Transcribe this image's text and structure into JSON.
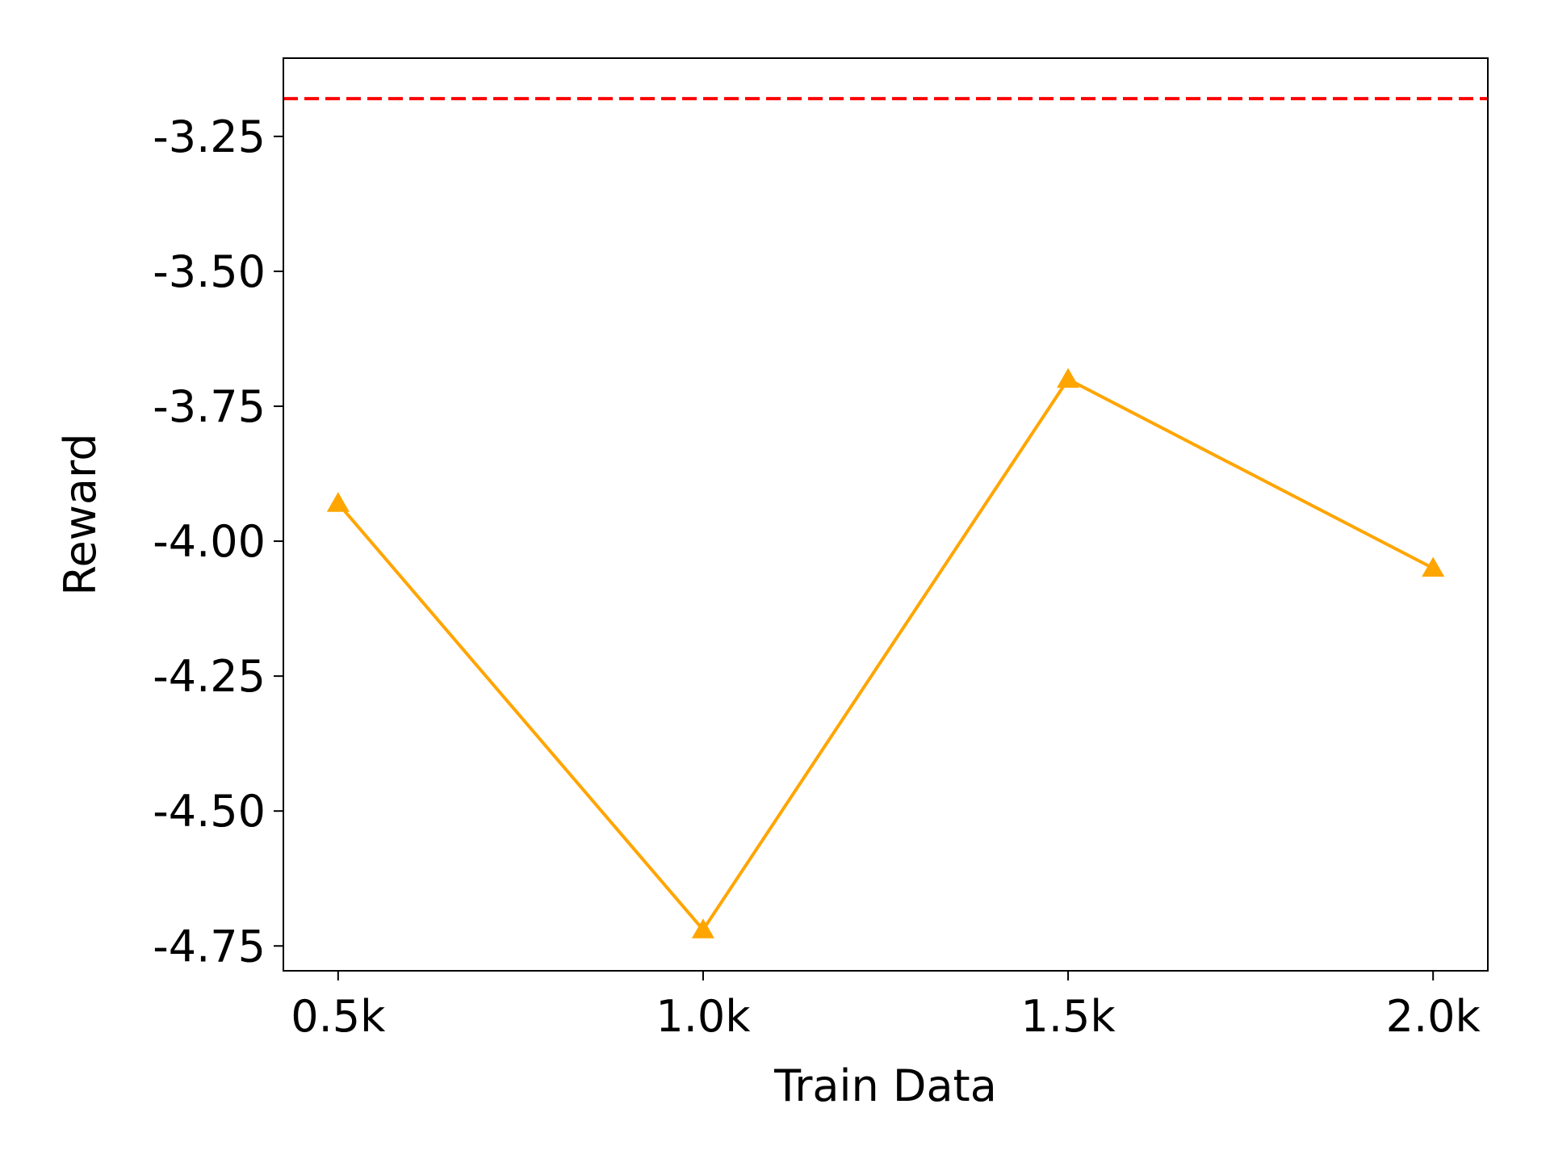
{
  "chart_data": {
    "type": "line",
    "xlabel": "Train Data",
    "ylabel": "Reward",
    "x": [
      500,
      1000,
      1500,
      2000
    ],
    "series": [
      {
        "color": "#ffa500",
        "marker": "triangle",
        "values": [
          -3.93,
          -4.72,
          -3.7,
          -4.05
        ]
      }
    ],
    "reference_line": {
      "value": -3.18,
      "color": "#ff0000",
      "style": "dashed"
    },
    "xlim": [
      425,
      2075
    ],
    "xticks": [
      {
        "value": 500,
        "label": "0.5k"
      },
      {
        "value": 1000,
        "label": "1.0k"
      },
      {
        "value": 1500,
        "label": "1.5k"
      },
      {
        "value": 2000,
        "label": "2.0k"
      }
    ],
    "ylim": [
      -4.796,
      -3.105
    ],
    "yticks": [
      {
        "value": -3.25,
        "label": "-3.25"
      },
      {
        "value": -3.5,
        "label": "-3.50"
      },
      {
        "value": -3.75,
        "label": "-3.75"
      },
      {
        "value": -4,
        "label": "-4.00"
      },
      {
        "value": -4.25,
        "label": "-4.25"
      },
      {
        "value": -4.5,
        "label": "-4.50"
      },
      {
        "value": -4.75,
        "label": "-4.75"
      }
    ],
    "grid": false
  }
}
